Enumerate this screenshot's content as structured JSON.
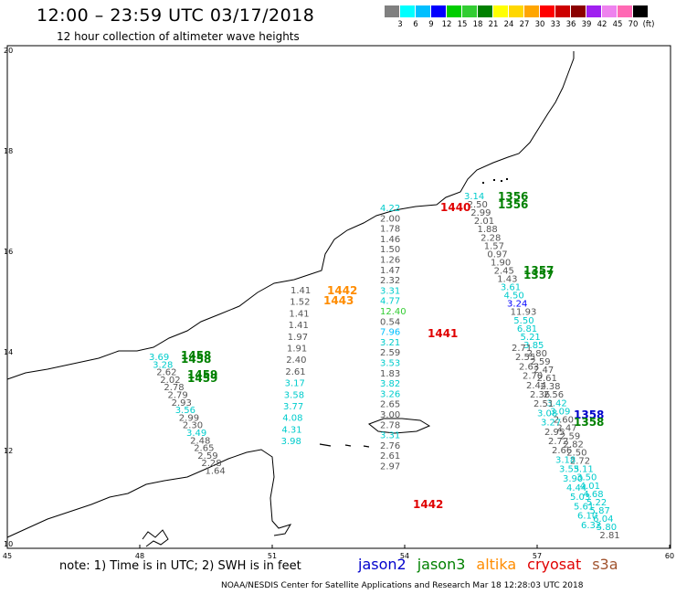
{
  "header": {
    "title": "12:00 – 23:59 UTC 03/17/2018",
    "subtitle": "12 hour collection of altimeter wave heights"
  },
  "legend": {
    "colors": [
      "#808080",
      "#00ffff",
      "#00bfff",
      "#0000ff",
      "#00cd00",
      "#32cd32",
      "#008000",
      "#ffff00",
      "#ffd700",
      "#ffa500",
      "#ff0000",
      "#cd0000",
      "#8b0000",
      "#a020f0",
      "#ee82ee",
      "#ff69b4",
      "#000000"
    ],
    "labels": [
      "3",
      "6",
      "9",
      "12",
      "15",
      "18",
      "21",
      "24",
      "27",
      "30",
      "33",
      "36",
      "39",
      "42",
      "45",
      "70",
      "(ft)"
    ]
  },
  "axes": {
    "x_ticks": [
      "45",
      "48",
      "51",
      "54",
      "57",
      "60"
    ],
    "y_ticks": [
      "20",
      "18",
      "16",
      "14",
      "12",
      "10"
    ]
  },
  "tracks": [
    {
      "id": "track-a",
      "labels": [
        {
          "t": "4.22",
          "c": "#00cccc"
        },
        {
          "t": "2.00",
          "c": "#555"
        },
        {
          "t": "1.78",
          "c": "#555"
        },
        {
          "t": "1.46",
          "c": "#555"
        },
        {
          "t": "1.50",
          "c": "#555"
        },
        {
          "t": "1.26",
          "c": "#555"
        },
        {
          "t": "1.47",
          "c": "#555"
        },
        {
          "t": "2.32",
          "c": "#555"
        },
        {
          "t": "3.31",
          "c": "#00cccc"
        },
        {
          "t": "4.77",
          "c": "#00cccc"
        },
        {
          "t": "12.40",
          "c": "#32cd32"
        },
        {
          "t": "0.54",
          "c": "#555"
        },
        {
          "t": "7.96",
          "c": "#00bfff"
        },
        {
          "t": "3.21",
          "c": "#00cccc"
        },
        {
          "t": "2.59",
          "c": "#555"
        },
        {
          "t": "3.53",
          "c": "#00cccc"
        },
        {
          "t": "1.83",
          "c": "#555"
        },
        {
          "t": "3.82",
          "c": "#00cccc"
        },
        {
          "t": "3.26",
          "c": "#00cccc"
        },
        {
          "t": "2.65",
          "c": "#555"
        },
        {
          "t": "3.00",
          "c": "#555"
        },
        {
          "t": "2.78",
          "c": "#555"
        },
        {
          "t": "3.31",
          "c": "#00cccc"
        },
        {
          "t": "2.76",
          "c": "#555"
        },
        {
          "t": "2.61",
          "c": "#555"
        },
        {
          "t": "2.97",
          "c": "#555"
        }
      ]
    },
    {
      "id": "track-b",
      "labels": [
        {
          "t": "1.41",
          "c": "#555"
        },
        {
          "t": "1.52",
          "c": "#555"
        },
        {
          "t": "1.41",
          "c": "#555"
        },
        {
          "t": "1.41",
          "c": "#555"
        },
        {
          "t": "1.97",
          "c": "#555"
        },
        {
          "t": "1.91",
          "c": "#555"
        },
        {
          "t": "2.40",
          "c": "#555"
        },
        {
          "t": "2.61",
          "c": "#555"
        },
        {
          "t": "3.17",
          "c": "#00cccc"
        },
        {
          "t": "3.58",
          "c": "#00cccc"
        },
        {
          "t": "3.77",
          "c": "#00cccc"
        },
        {
          "t": "4.08",
          "c": "#00cccc"
        },
        {
          "t": "4.31",
          "c": "#00cccc"
        },
        {
          "t": "3.98",
          "c": "#00cccc"
        }
      ]
    },
    {
      "id": "track-c",
      "labels": [
        {
          "t": "3.14",
          "c": "#00cccc"
        },
        {
          "t": "2.50",
          "c": "#555"
        },
        {
          "t": "2.99",
          "c": "#555"
        },
        {
          "t": "2.01",
          "c": "#555"
        },
        {
          "t": "1.88",
          "c": "#555"
        },
        {
          "t": "2.28",
          "c": "#555"
        },
        {
          "t": "1.57",
          "c": "#555"
        },
        {
          "t": "0.97",
          "c": "#555"
        },
        {
          "t": "1.90",
          "c": "#555"
        },
        {
          "t": "2.45",
          "c": "#555"
        },
        {
          "t": "1.43",
          "c": "#555"
        },
        {
          "t": "3.61",
          "c": "#00cccc"
        },
        {
          "t": "4.50",
          "c": "#00cccc"
        },
        {
          "t": "3.24",
          "c": "#0000ff"
        },
        {
          "t": "11.93",
          "c": "#555"
        },
        {
          "t": "5.50",
          "c": "#00cccc"
        },
        {
          "t": "6.81",
          "c": "#00cccc"
        },
        {
          "t": "5.21",
          "c": "#00cccc"
        },
        {
          "t": "3.85",
          "c": "#00cccc"
        },
        {
          "t": "2.80",
          "c": "#555"
        },
        {
          "t": "2.59",
          "c": "#555"
        },
        {
          "t": "2.47",
          "c": "#555"
        },
        {
          "t": "2.61",
          "c": "#555"
        },
        {
          "t": "2.38",
          "c": "#555"
        },
        {
          "t": "2.56",
          "c": "#555"
        },
        {
          "t": "3.42",
          "c": "#00cccc"
        },
        {
          "t": "3.09",
          "c": "#00cccc"
        },
        {
          "t": "2.60",
          "c": "#555"
        },
        {
          "t": "2.47",
          "c": "#555"
        },
        {
          "t": "2.59",
          "c": "#555"
        },
        {
          "t": "2.82",
          "c": "#555"
        },
        {
          "t": "2.50",
          "c": "#555"
        },
        {
          "t": "2.72",
          "c": "#555"
        },
        {
          "t": "3.11",
          "c": "#00cccc"
        },
        {
          "t": "3.50",
          "c": "#00cccc"
        },
        {
          "t": "4.01",
          "c": "#00cccc"
        },
        {
          "t": "4.68",
          "c": "#00cccc"
        },
        {
          "t": "5.22",
          "c": "#00cccc"
        },
        {
          "t": "5.87",
          "c": "#00cccc"
        },
        {
          "t": "6.04",
          "c": "#00cccc"
        },
        {
          "t": "5.80",
          "c": "#00cccc"
        },
        {
          "t": "2.81",
          "c": "#555"
        }
      ]
    },
    {
      "id": "track-d",
      "labels": [
        {
          "t": "3.69",
          "c": "#00cccc"
        },
        {
          "t": "3.28",
          "c": "#00cccc"
        },
        {
          "t": "2.62",
          "c": "#555"
        },
        {
          "t": "2.02",
          "c": "#555"
        },
        {
          "t": "2.78",
          "c": "#555"
        },
        {
          "t": "2.79",
          "c": "#555"
        },
        {
          "t": "2.93",
          "c": "#555"
        },
        {
          "t": "3.56",
          "c": "#00cccc"
        },
        {
          "t": "2.99",
          "c": "#555"
        },
        {
          "t": "2.30",
          "c": "#555"
        },
        {
          "t": "3.49",
          "c": "#00cccc"
        },
        {
          "t": "2.48",
          "c": "#555"
        },
        {
          "t": "2.65",
          "c": "#555"
        },
        {
          "t": "2.59",
          "c": "#555"
        },
        {
          "t": "2.28",
          "c": "#555"
        },
        {
          "t": "1.64",
          "c": "#555"
        }
      ]
    },
    {
      "id": "track-e",
      "labels": [
        {
          "t": "2.71",
          "c": "#555"
        },
        {
          "t": "2.55",
          "c": "#555"
        },
        {
          "t": "2.63",
          "c": "#555"
        },
        {
          "t": "2.70",
          "c": "#555"
        },
        {
          "t": "2.44",
          "c": "#555"
        },
        {
          "t": "2.36",
          "c": "#555"
        },
        {
          "t": "2.51",
          "c": "#555"
        },
        {
          "t": "3.08",
          "c": "#00cccc"
        },
        {
          "t": "3.27",
          "c": "#00cccc"
        },
        {
          "t": "2.95",
          "c": "#555"
        },
        {
          "t": "2.72",
          "c": "#555"
        },
        {
          "t": "2.66",
          "c": "#555"
        },
        {
          "t": "3.18",
          "c": "#00cccc"
        },
        {
          "t": "3.55",
          "c": "#00cccc"
        },
        {
          "t": "3.90",
          "c": "#00cccc"
        },
        {
          "t": "4.44",
          "c": "#00cccc"
        },
        {
          "t": "5.03",
          "c": "#00cccc"
        },
        {
          "t": "5.61",
          "c": "#00cccc"
        },
        {
          "t": "6.10",
          "c": "#00cccc"
        },
        {
          "t": "6.32",
          "c": "#00cccc"
        }
      ]
    }
  ],
  "pass_times": [
    {
      "t": "1440",
      "c": "#e00000"
    },
    {
      "t": "1441",
      "c": "#e00000"
    },
    {
      "t": "1442",
      "c": "#e00000"
    },
    {
      "t": "1442",
      "c": "#ff8c00"
    },
    {
      "t": "1443",
      "c": "#ff8c00"
    },
    {
      "t": "1356",
      "c": "#008000"
    },
    {
      "t": "1356",
      "c": "#008000"
    },
    {
      "t": "1357",
      "c": "#008000"
    },
    {
      "t": "1357",
      "c": "#008000"
    },
    {
      "t": "1458",
      "c": "#008000"
    },
    {
      "t": "1458",
      "c": "#008000"
    },
    {
      "t": "1459",
      "c": "#008000"
    },
    {
      "t": "1459",
      "c": "#008000"
    },
    {
      "t": "1358",
      "c": "#0000cc"
    },
    {
      "t": "1358",
      "c": "#008000"
    }
  ],
  "footer": {
    "note": "note: 1) Time is in UTC; 2) SWH is in feet",
    "satellites": [
      {
        "name": "jason2",
        "color": "#0000cc"
      },
      {
        "name": "jason3",
        "color": "#008000"
      },
      {
        "name": "altika",
        "color": "#ff8c00"
      },
      {
        "name": "cryosat",
        "color": "#e00000"
      },
      {
        "name": "s3a",
        "color": "#a0522d"
      }
    ],
    "credit": "NOAA/NESDIS Center for Satellite Applications and Research    Mar 18 12:28:03 UTC 2018"
  }
}
